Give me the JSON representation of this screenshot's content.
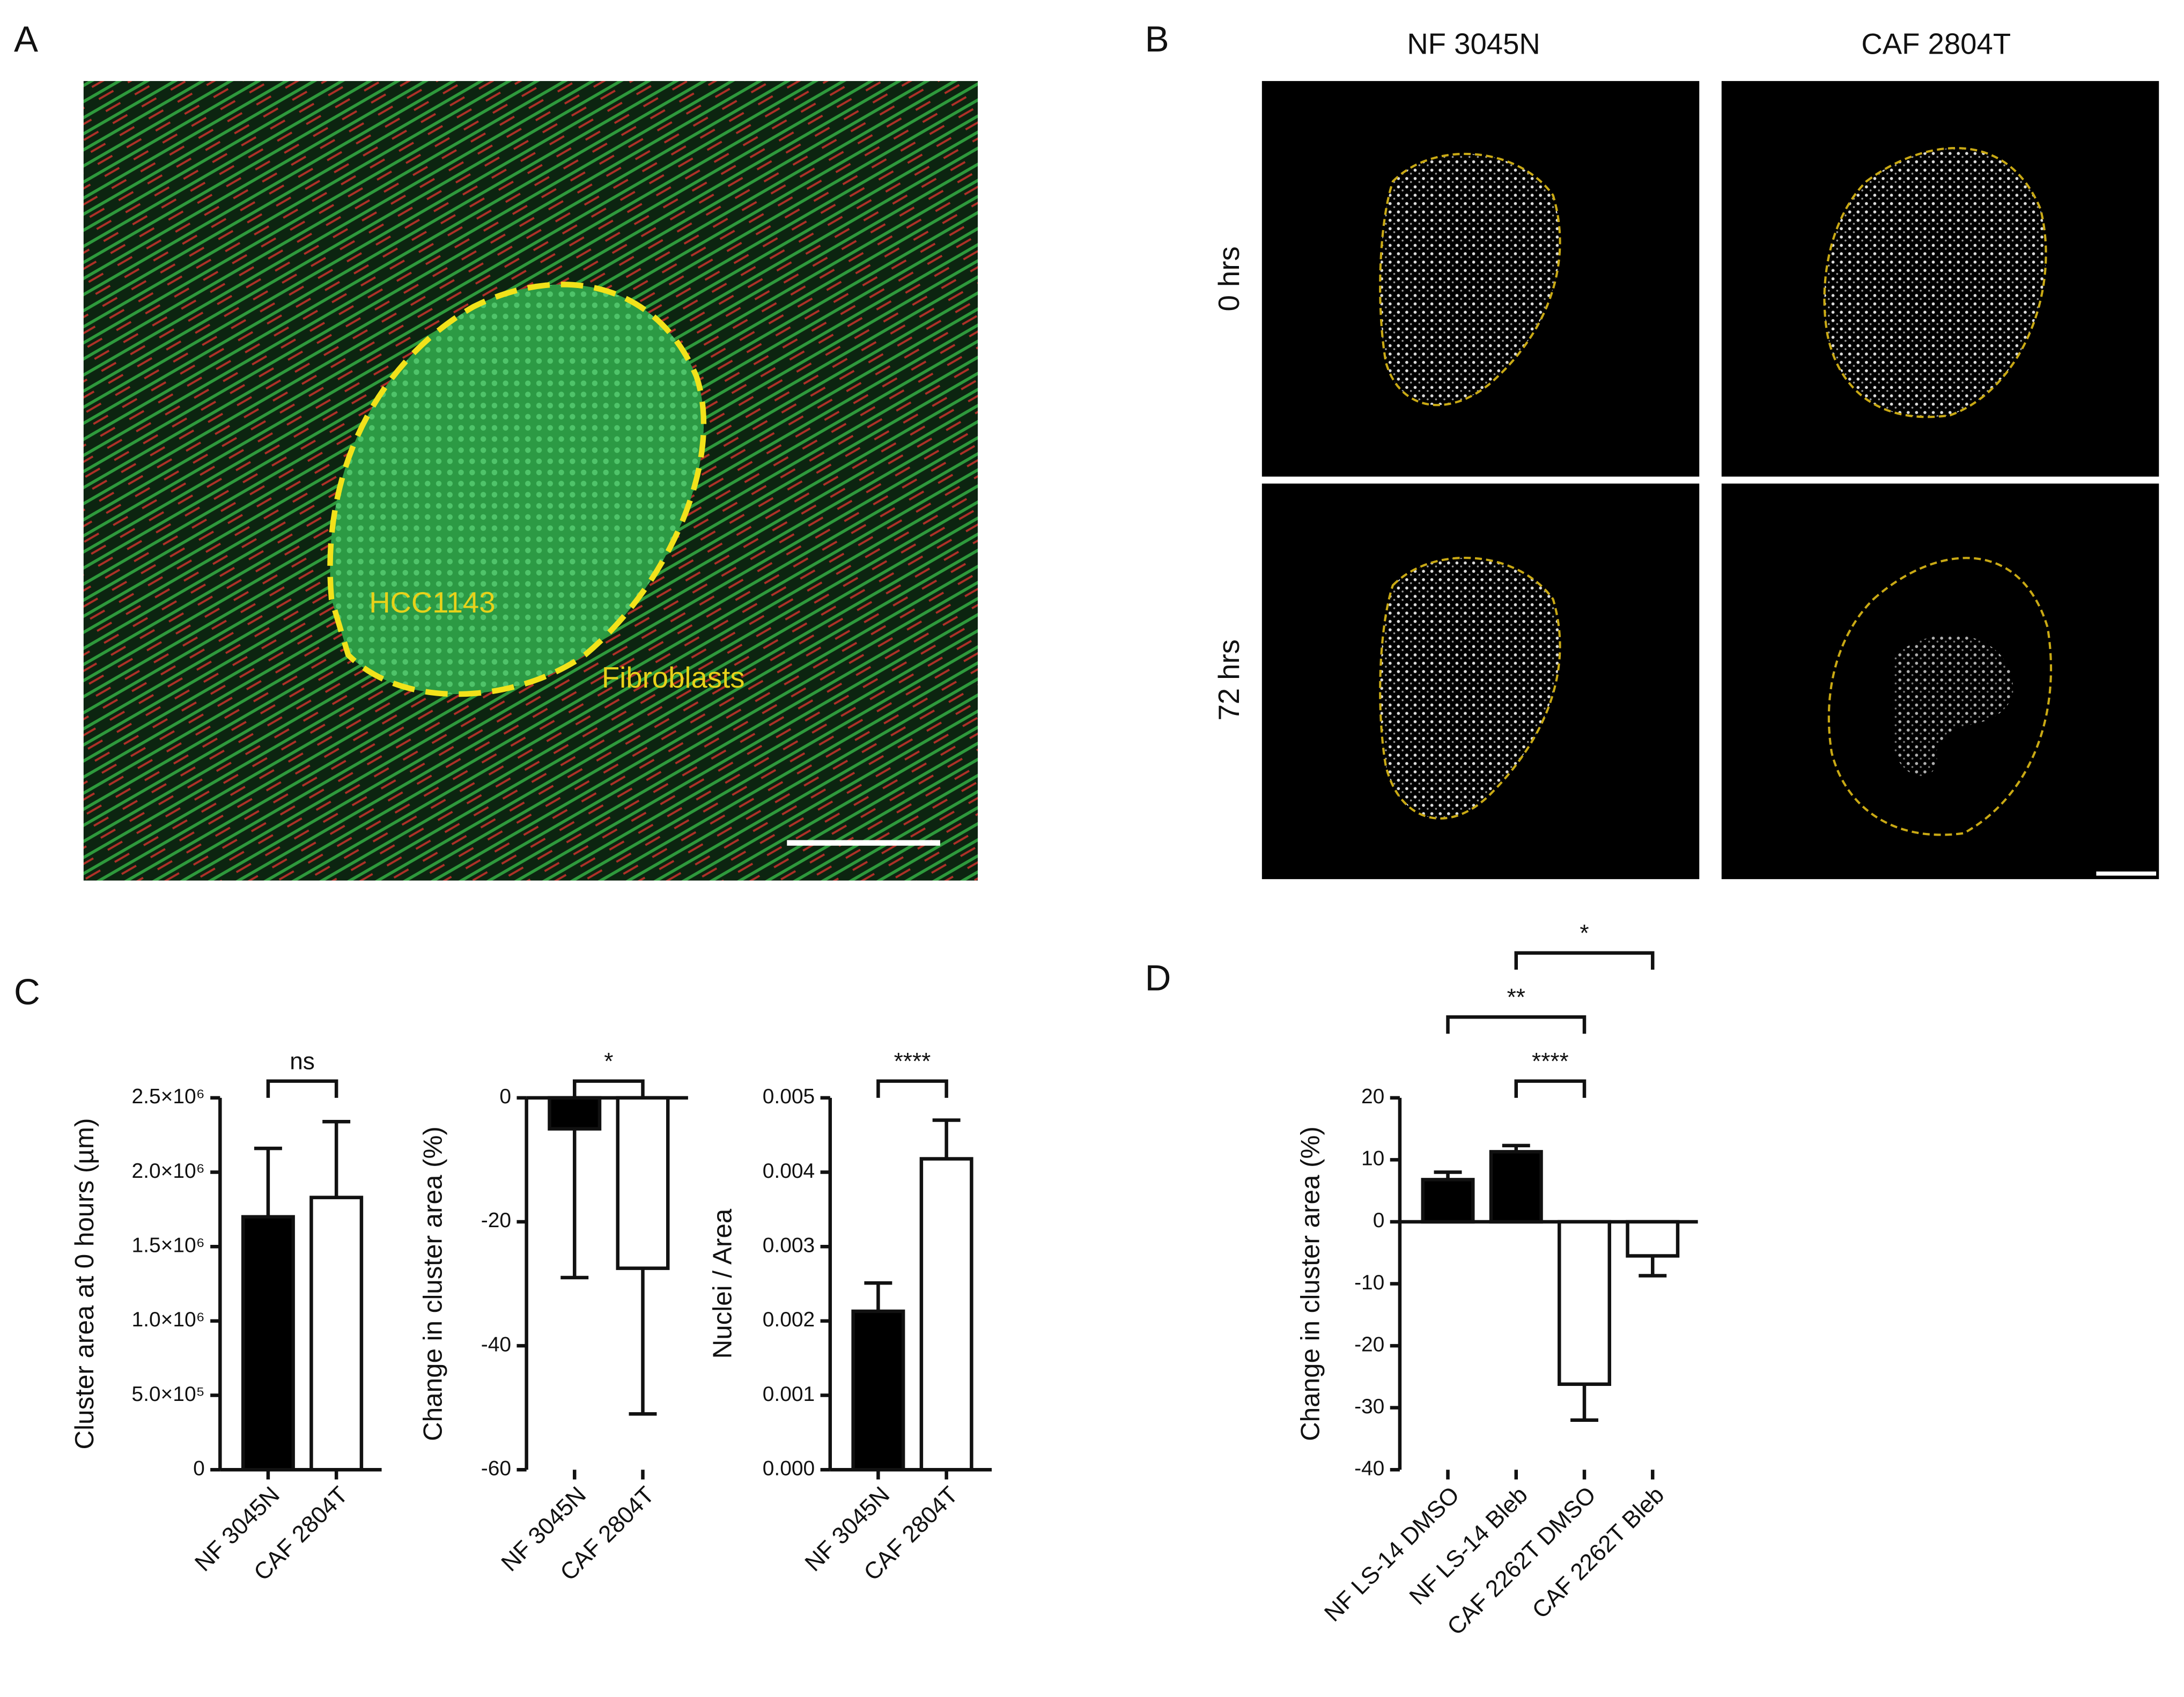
{
  "panels": {
    "a": {
      "label": "A",
      "annotations": [
        "HCC1143",
        "Fibroblasts"
      ]
    },
    "b": {
      "label": "B",
      "columns": [
        "NF 3045N",
        "CAF 2804T"
      ],
      "rows": [
        "0 hrs",
        "72 hrs"
      ]
    },
    "c": {
      "label": "C"
    },
    "d": {
      "label": "D"
    }
  },
  "chart_data": [
    {
      "type": "bar",
      "y_label": "Cluster area at 0 hours (µm)",
      "categories": [
        "NF 3045N",
        "CAF 2804T"
      ],
      "values": [
        1700000,
        1830000
      ],
      "errors": [
        460000,
        510000
      ],
      "colors": [
        "#000000",
        "#ffffff"
      ],
      "ylim": [
        0,
        2500000
      ],
      "yticks": [
        0,
        {
          "value": 500000,
          "label": "5.0×10⁵"
        },
        {
          "value": 1000000,
          "label": "1.0×10⁶"
        },
        {
          "value": 1500000,
          "label": "1.5×10⁶"
        },
        {
          "value": 2000000,
          "label": "2.0×10⁶"
        },
        {
          "value": 2500000,
          "label": "2.5×10⁶"
        }
      ],
      "significance": [
        {
          "label": "ns",
          "pair": [
            0,
            1
          ]
        }
      ]
    },
    {
      "type": "bar",
      "y_label": "Change in cluster area (%)",
      "categories": [
        "NF 3045N",
        "CAF 2804T"
      ],
      "values": [
        -5,
        -27.5
      ],
      "errors": [
        24,
        23.5
      ],
      "colors": [
        "#000000",
        "#ffffff"
      ],
      "ylim": [
        -60,
        0
      ],
      "yticks": [
        -60,
        -40,
        -20,
        0
      ],
      "significance": [
        {
          "label": "*",
          "pair": [
            0,
            1
          ]
        }
      ]
    },
    {
      "type": "bar",
      "y_label": "Nuclei / Area",
      "categories": [
        "NF 3045N",
        "CAF 2804T"
      ],
      "values": [
        0.00213,
        0.00418
      ],
      "errors": [
        0.00038,
        0.00052
      ],
      "colors": [
        "#000000",
        "#ffffff"
      ],
      "ylim": [
        0,
        0.005
      ],
      "yticks": [
        {
          "value": 0,
          "label": "0.000"
        },
        {
          "value": 0.001,
          "label": "0.001"
        },
        {
          "value": 0.002,
          "label": "0.002"
        },
        {
          "value": 0.003,
          "label": "0.003"
        },
        {
          "value": 0.004,
          "label": "0.004"
        },
        {
          "value": 0.005,
          "label": "0.005"
        }
      ],
      "significance": [
        {
          "label": "****",
          "pair": [
            0,
            1
          ]
        }
      ]
    },
    {
      "type": "bar",
      "y_label": "Change in cluster area (%)",
      "categories": [
        "NF LS-14 DMSO",
        "NF LS-14 Bleb",
        "CAF 2262T DMSO",
        "CAF 2262T Bleb"
      ],
      "values": [
        6.8,
        11.3,
        -26.2,
        -5.5
      ],
      "errors": [
        1.2,
        1.0,
        5.8,
        3.2
      ],
      "colors": [
        "#000000",
        "#000000",
        "#ffffff",
        "#ffffff"
      ],
      "ylim": [
        -40,
        20
      ],
      "yticks": [
        -40,
        -30,
        -20,
        -10,
        0,
        10,
        20
      ],
      "significance": [
        {
          "label": "****",
          "pair": [
            1,
            2
          ]
        },
        {
          "label": "**",
          "pair": [
            0,
            2
          ]
        },
        {
          "label": "*",
          "pair": [
            1,
            3
          ]
        }
      ]
    }
  ]
}
